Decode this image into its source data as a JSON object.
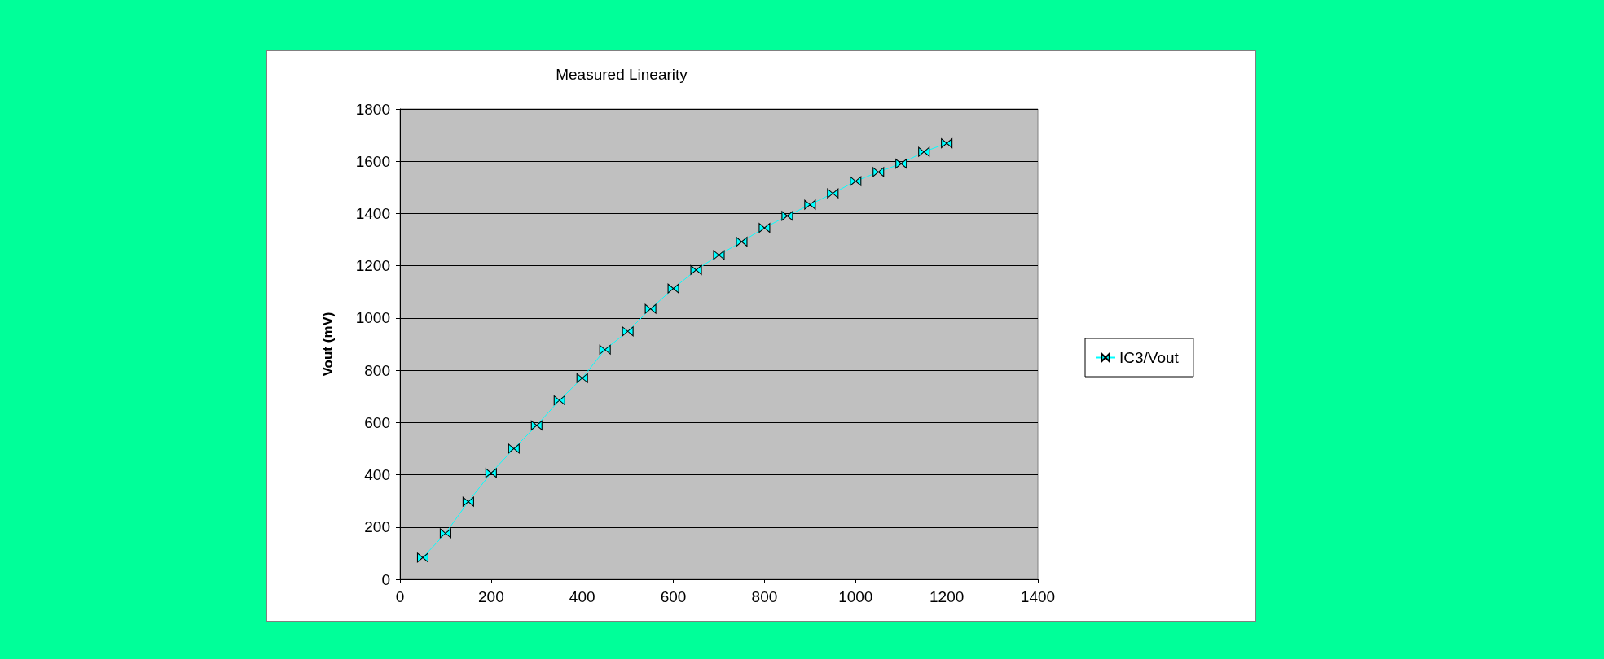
{
  "chart_data": {
    "type": "line",
    "title": "Measured Linearity",
    "ylabel": "Vout (mV)",
    "x": [
      50,
      100,
      150,
      200,
      250,
      300,
      350,
      400,
      450,
      500,
      550,
      600,
      650,
      700,
      750,
      800,
      850,
      900,
      950,
      1000,
      1050,
      1100,
      1150,
      1200
    ],
    "series": [
      {
        "name": "IC3/Vout",
        "color": "#00ffff",
        "values": [
          83,
          176,
          297,
          407,
          500,
          589,
          685,
          770,
          879,
          949,
          1035,
          1113,
          1184,
          1241,
          1292,
          1345,
          1391,
          1434,
          1477,
          1524,
          1559,
          1591,
          1636,
          1669
        ]
      }
    ],
    "xlim": [
      0,
      1400
    ],
    "xticks": [
      0,
      200,
      400,
      600,
      800,
      1000,
      1200,
      1400
    ],
    "ylim": [
      0,
      1800
    ],
    "yticks": [
      0,
      200,
      400,
      600,
      800,
      1000,
      1200,
      1400,
      1600,
      1800
    ],
    "grid": "y",
    "legend": "right",
    "marker": "triangle",
    "line_style": "solid"
  }
}
